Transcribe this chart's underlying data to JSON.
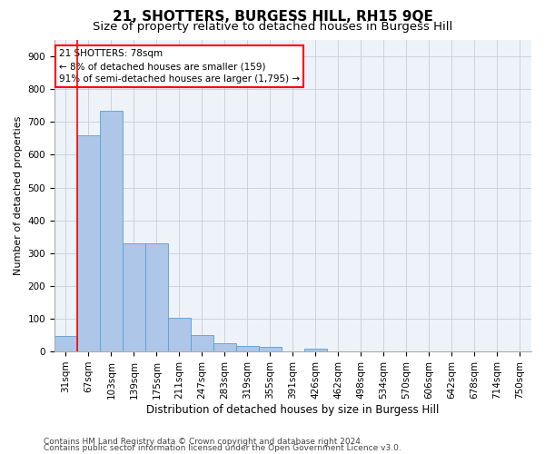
{
  "title": "21, SHOTTERS, BURGESS HILL, RH15 9QE",
  "subtitle": "Size of property relative to detached houses in Burgess Hill",
  "xlabel": "Distribution of detached houses by size in Burgess Hill",
  "ylabel": "Number of detached properties",
  "footnote1": "Contains HM Land Registry data © Crown copyright and database right 2024.",
  "footnote2": "Contains public sector information licensed under the Open Government Licence v3.0.",
  "bar_labels": [
    "31sqm",
    "67sqm",
    "103sqm",
    "139sqm",
    "175sqm",
    "211sqm",
    "247sqm",
    "283sqm",
    "319sqm",
    "355sqm",
    "391sqm",
    "426sqm",
    "462sqm",
    "498sqm",
    "534sqm",
    "570sqm",
    "606sqm",
    "642sqm",
    "678sqm",
    "714sqm",
    "750sqm"
  ],
  "bar_values": [
    48,
    659,
    735,
    330,
    330,
    103,
    50,
    25,
    17,
    13,
    0,
    9,
    0,
    0,
    0,
    0,
    0,
    0,
    0,
    0,
    0
  ],
  "bar_color": "#aec6e8",
  "bar_edge_color": "#5a9fd4",
  "vline_x": 0.5,
  "vline_color": "red",
  "annotation_text": "21 SHOTTERS: 78sqm\n← 8% of detached houses are smaller (159)\n91% of semi-detached houses are larger (1,795) →",
  "annotation_box_color": "white",
  "annotation_box_edge": "red",
  "ylim": [
    0,
    950
  ],
  "yticks": [
    0,
    100,
    200,
    300,
    400,
    500,
    600,
    700,
    800,
    900
  ],
  "background_color": "#eef2f9",
  "grid_color": "#c8cdd8",
  "title_fontsize": 11,
  "subtitle_fontsize": 9.5,
  "ylabel_fontsize": 8,
  "xlabel_fontsize": 8.5,
  "tick_fontsize": 7.5,
  "annotation_fontsize": 7.5,
  "footnote_fontsize": 6.5
}
